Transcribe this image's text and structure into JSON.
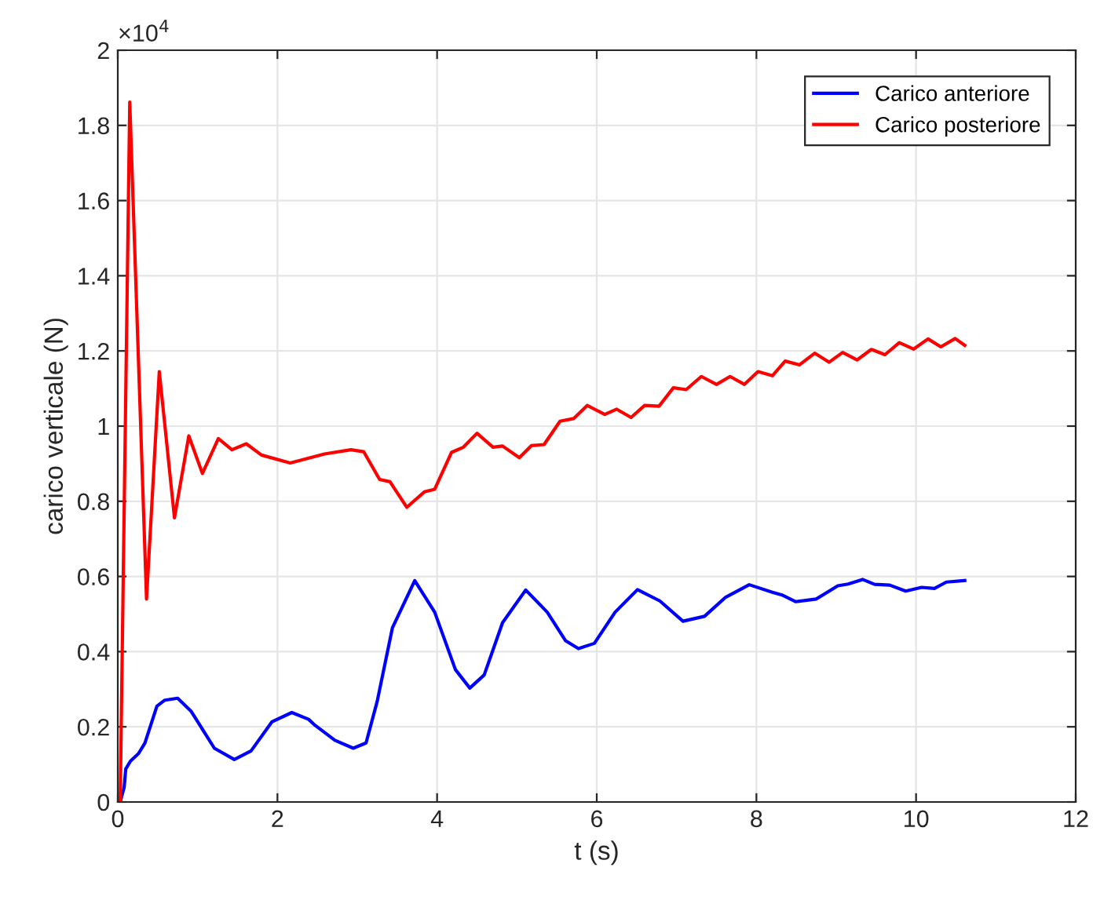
{
  "chart_data": {
    "type": "line",
    "xlabel": "t (s)",
    "ylabel": "carico verticale (N)",
    "annotations": [
      "×10$^{4}$"
    ],
    "xlim": [
      0,
      12
    ],
    "xticks": [
      0,
      2,
      4,
      6,
      8,
      10,
      12
    ],
    "ylim": [
      0,
      2
    ],
    "yticks": [
      0,
      0.2,
      0.4,
      0.6,
      0.8,
      1,
      1.2,
      1.4,
      1.6,
      1.8,
      2
    ],
    "grid": true,
    "legend": "top right",
    "series": [
      {
        "name": "Carico anteriore",
        "color": "#0000ff",
        "x": [
          0.03,
          0.08,
          0.1,
          0.16,
          0.26,
          0.34,
          0.49,
          0.59,
          0.75,
          0.92,
          1.21,
          1.46,
          1.67,
          1.93,
          2.18,
          2.39,
          2.46,
          2.72,
          2.95,
          3.11,
          3.25,
          3.44,
          3.72,
          3.97,
          4.23,
          4.41,
          4.59,
          4.82,
          5.11,
          5.38,
          5.61,
          5.77,
          5.97,
          6.23,
          6.51,
          6.79,
          7.08,
          7.35,
          7.61,
          7.91,
          8.2,
          8.33,
          8.49,
          8.75,
          9.02,
          9.15,
          9.33,
          9.48,
          9.67,
          9.87,
          10.07,
          10.23,
          10.38,
          10.61
        ],
        "values": [
          0,
          0.039,
          0.088,
          0.109,
          0.129,
          0.157,
          0.255,
          0.271,
          0.276,
          0.241,
          0.143,
          0.113,
          0.136,
          0.213,
          0.238,
          0.22,
          0.206,
          0.164,
          0.143,
          0.157,
          0.268,
          0.463,
          0.589,
          0.505,
          0.352,
          0.303,
          0.338,
          0.477,
          0.564,
          0.505,
          0.429,
          0.408,
          0.422,
          0.505,
          0.565,
          0.535,
          0.481,
          0.494,
          0.544,
          0.578,
          0.558,
          0.55,
          0.533,
          0.54,
          0.575,
          0.58,
          0.592,
          0.579,
          0.577,
          0.561,
          0.571,
          0.568,
          0.585,
          0.589
        ]
      },
      {
        "name": "Carico posteriore",
        "color": "#ff0000",
        "x": [
          0.03,
          0.15,
          0.36,
          0.52,
          0.71,
          0.89,
          1.06,
          1.26,
          1.43,
          1.61,
          1.8,
          2.16,
          2.59,
          2.92,
          3.08,
          3.28,
          3.41,
          3.62,
          3.84,
          3.97,
          4.18,
          4.33,
          4.5,
          4.7,
          4.82,
          5.03,
          5.18,
          5.34,
          5.54,
          5.71,
          5.88,
          6.1,
          6.25,
          6.43,
          6.6,
          6.78,
          6.96,
          7.12,
          7.31,
          7.5,
          7.67,
          7.85,
          8.02,
          8.2,
          8.36,
          8.54,
          8.73,
          8.91,
          9.08,
          9.26,
          9.44,
          9.61,
          9.79,
          9.97,
          10.15,
          10.31,
          10.49,
          10.61
        ],
        "values": [
          0,
          1.862,
          0.54,
          1.145,
          0.756,
          0.974,
          0.874,
          0.967,
          0.937,
          0.953,
          0.923,
          0.902,
          0.926,
          0.937,
          0.932,
          0.858,
          0.852,
          0.784,
          0.825,
          0.832,
          0.93,
          0.944,
          0.981,
          0.944,
          0.947,
          0.916,
          0.948,
          0.951,
          1.013,
          1.02,
          1.055,
          1.031,
          1.045,
          1.023,
          1.055,
          1.053,
          1.102,
          1.097,
          1.132,
          1.111,
          1.132,
          1.111,
          1.145,
          1.134,
          1.173,
          1.163,
          1.194,
          1.17,
          1.196,
          1.176,
          1.204,
          1.19,
          1.222,
          1.205,
          1.232,
          1.211,
          1.233,
          1.215
        ]
      }
    ]
  }
}
